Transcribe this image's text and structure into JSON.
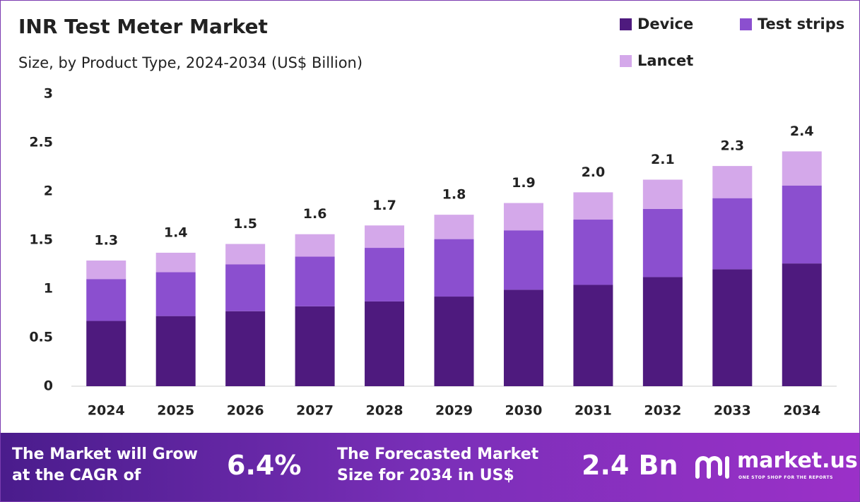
{
  "chart_data": {
    "type": "stacked_bar",
    "title": "INR Test Meter Market",
    "subtitle": "Size, by Product Type, 2024-2034 (US$ Billion)",
    "categories": [
      "2024",
      "2025",
      "2026",
      "2027",
      "2028",
      "2029",
      "2030",
      "2031",
      "2032",
      "2033",
      "2034"
    ],
    "series": [
      {
        "name": "Device",
        "color": "#4e1a7e",
        "values": [
          0.67,
          0.72,
          0.77,
          0.82,
          0.87,
          0.92,
          0.99,
          1.04,
          1.12,
          1.2,
          1.26
        ]
      },
      {
        "name": "Test strips",
        "color": "#8b4fcf",
        "values": [
          0.43,
          0.45,
          0.48,
          0.51,
          0.55,
          0.59,
          0.61,
          0.67,
          0.7,
          0.73,
          0.8
        ]
      },
      {
        "name": "Lancet",
        "color": "#d4a8ea",
        "values": [
          0.19,
          0.2,
          0.21,
          0.23,
          0.23,
          0.25,
          0.28,
          0.28,
          0.3,
          0.33,
          0.35
        ]
      }
    ],
    "totals": {
      "values": [
        1.3,
        1.4,
        1.5,
        1.6,
        1.7,
        1.8,
        1.9,
        2.0,
        2.1,
        2.3,
        2.4
      ],
      "value_labels": [
        "1.3",
        "1.4",
        "1.5",
        "1.6",
        "1.7",
        "1.8",
        "1.9",
        "2.0",
        "2.1",
        "2.3",
        "2.4"
      ]
    },
    "ylim": [
      0,
      3
    ],
    "yticks": [
      0,
      0.5,
      1,
      1.5,
      2,
      2.5,
      3
    ],
    "grid": false
  },
  "footer": {
    "cagr_text": "The Market will Grow at the CAGR of",
    "cagr_value": "6.4%",
    "forecast_text": "The Forecasted Market Size for 2034 in US$",
    "forecast_value": "2.4 Bn",
    "brand": "market.us",
    "tagline": "ONE STOP SHOP FOR THE REPORTS"
  }
}
